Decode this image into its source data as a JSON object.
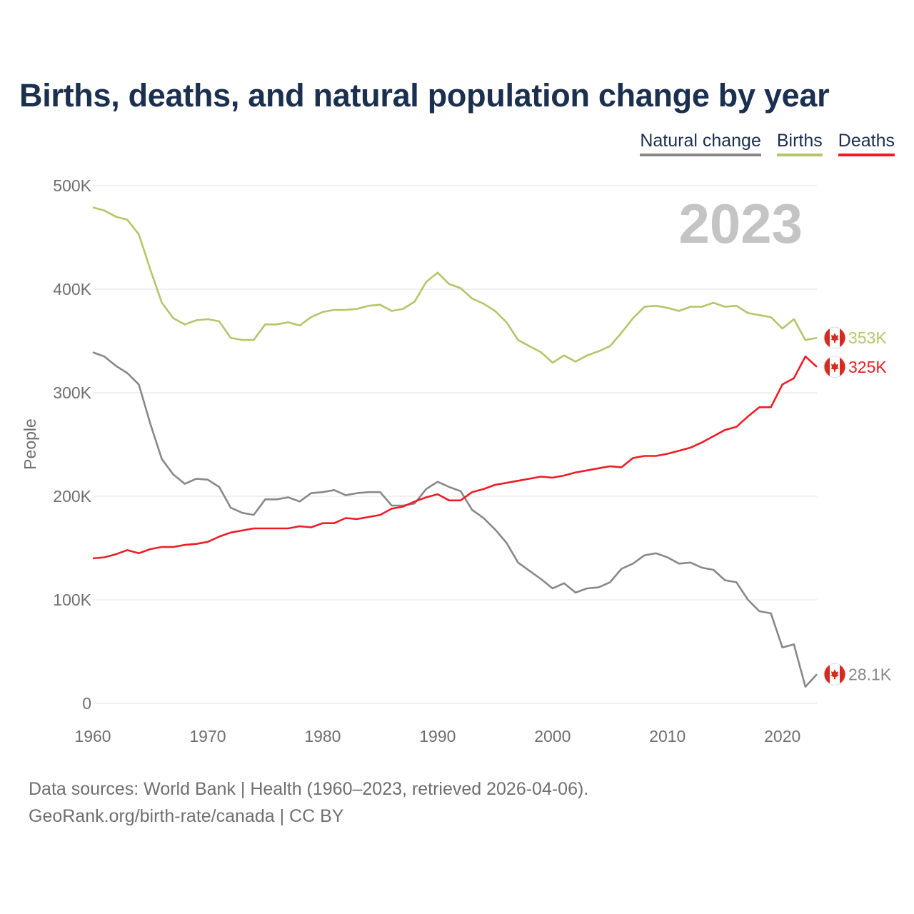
{
  "title": "Births, deaths, and natural population change by year",
  "legend": [
    {
      "label": "Natural change",
      "color": "#888888"
    },
    {
      "label": "Births",
      "color": "#b5c56a"
    },
    {
      "label": "Deaths",
      "color": "#ee1c25"
    }
  ],
  "year_label": "2023",
  "footer": {
    "source": "Data sources: World Bank | Health (1960–2023, retrieved 2026-04-06).",
    "credit": "GeoRank.org/birth-rate/canada | CC BY"
  },
  "colors": {
    "title": "#1b2f4f",
    "births": "#b5c56a",
    "deaths": "#ee1c25",
    "natural": "#888888",
    "flag_red": "#d52b1e"
  },
  "chart_data": {
    "type": "line",
    "title": "Births, deaths, and natural population change by year",
    "xlabel": "",
    "ylabel": "People",
    "ylim": [
      0,
      500000
    ],
    "xlim": [
      1960,
      2023
    ],
    "yticks": [
      {
        "v": 0,
        "label": "0"
      },
      {
        "v": 100000,
        "label": "100K"
      },
      {
        "v": 200000,
        "label": "200K"
      },
      {
        "v": 300000,
        "label": "300K"
      },
      {
        "v": 400000,
        "label": "400K"
      },
      {
        "v": 500000,
        "label": "500K"
      }
    ],
    "xticks": [
      {
        "v": 1960,
        "label": "1960"
      },
      {
        "v": 1970,
        "label": "1970"
      },
      {
        "v": 1980,
        "label": "1980"
      },
      {
        "v": 1990,
        "label": "1990"
      },
      {
        "v": 2000,
        "label": "2000"
      },
      {
        "v": 2010,
        "label": "2010"
      },
      {
        "v": 2020,
        "label": "2020"
      }
    ],
    "x": [
      1960,
      1961,
      1962,
      1963,
      1964,
      1965,
      1966,
      1967,
      1968,
      1969,
      1970,
      1971,
      1972,
      1973,
      1974,
      1975,
      1976,
      1977,
      1978,
      1979,
      1980,
      1981,
      1982,
      1983,
      1984,
      1985,
      1986,
      1987,
      1988,
      1989,
      1990,
      1991,
      1992,
      1993,
      1994,
      1995,
      1996,
      1997,
      1998,
      1999,
      2000,
      2001,
      2002,
      2003,
      2004,
      2005,
      2006,
      2007,
      2008,
      2009,
      2010,
      2011,
      2012,
      2013,
      2014,
      2015,
      2016,
      2017,
      2018,
      2019,
      2020,
      2021,
      2022,
      2023
    ],
    "series": [
      {
        "name": "Births",
        "color": "#b5c56a",
        "end_label": "353K",
        "values": [
          479000,
          476000,
          470000,
          467000,
          453000,
          419000,
          387000,
          372000,
          366000,
          370000,
          371000,
          369000,
          353000,
          351000,
          351000,
          366000,
          366000,
          368000,
          365000,
          373000,
          378000,
          380000,
          380000,
          381000,
          384000,
          385000,
          379000,
          381000,
          388000,
          407000,
          416000,
          405000,
          401000,
          391000,
          386000,
          379000,
          368000,
          351000,
          345000,
          339000,
          329000,
          336000,
          330000,
          336000,
          340000,
          345000,
          358000,
          372000,
          383000,
          384000,
          382000,
          379000,
          383000,
          383000,
          387000,
          383000,
          384000,
          377000,
          375000,
          373000,
          362000,
          371000,
          351000,
          353000
        ]
      },
      {
        "name": "Deaths",
        "color": "#ee1c25",
        "end_label": "325K",
        "values": [
          140000,
          141000,
          144000,
          148000,
          145000,
          149000,
          151000,
          151000,
          153000,
          154000,
          156000,
          161000,
          165000,
          167000,
          169000,
          169000,
          169000,
          169000,
          171000,
          170000,
          174000,
          174000,
          179000,
          178000,
          180000,
          182000,
          188000,
          190000,
          195000,
          199000,
          202000,
          196000,
          196000,
          204000,
          207000,
          211000,
          213000,
          215000,
          217000,
          219000,
          218000,
          220000,
          223000,
          225000,
          227000,
          229000,
          228000,
          237000,
          239000,
          239000,
          241000,
          244000,
          247000,
          252000,
          258000,
          264000,
          267000,
          277000,
          286000,
          286000,
          308000,
          314000,
          335000,
          325000
        ]
      },
      {
        "name": "Natural change",
        "color": "#888888",
        "end_label": "28.1K",
        "values": [
          339000,
          335000,
          326000,
          319000,
          308000,
          270000,
          236000,
          221000,
          212000,
          217000,
          216000,
          209000,
          189000,
          184000,
          182000,
          197000,
          197000,
          199000,
          195000,
          203000,
          204000,
          206000,
          201000,
          203000,
          204000,
          204000,
          191000,
          191000,
          193000,
          207000,
          214000,
          209000,
          205000,
          187000,
          179000,
          168000,
          155000,
          136000,
          128000,
          120000,
          111000,
          116000,
          107000,
          111000,
          112000,
          117000,
          130000,
          135000,
          143000,
          145000,
          141000,
          135000,
          136000,
          131000,
          129000,
          119000,
          117000,
          100000,
          89000,
          87000,
          54000,
          57000,
          16000,
          28100
        ]
      }
    ]
  }
}
